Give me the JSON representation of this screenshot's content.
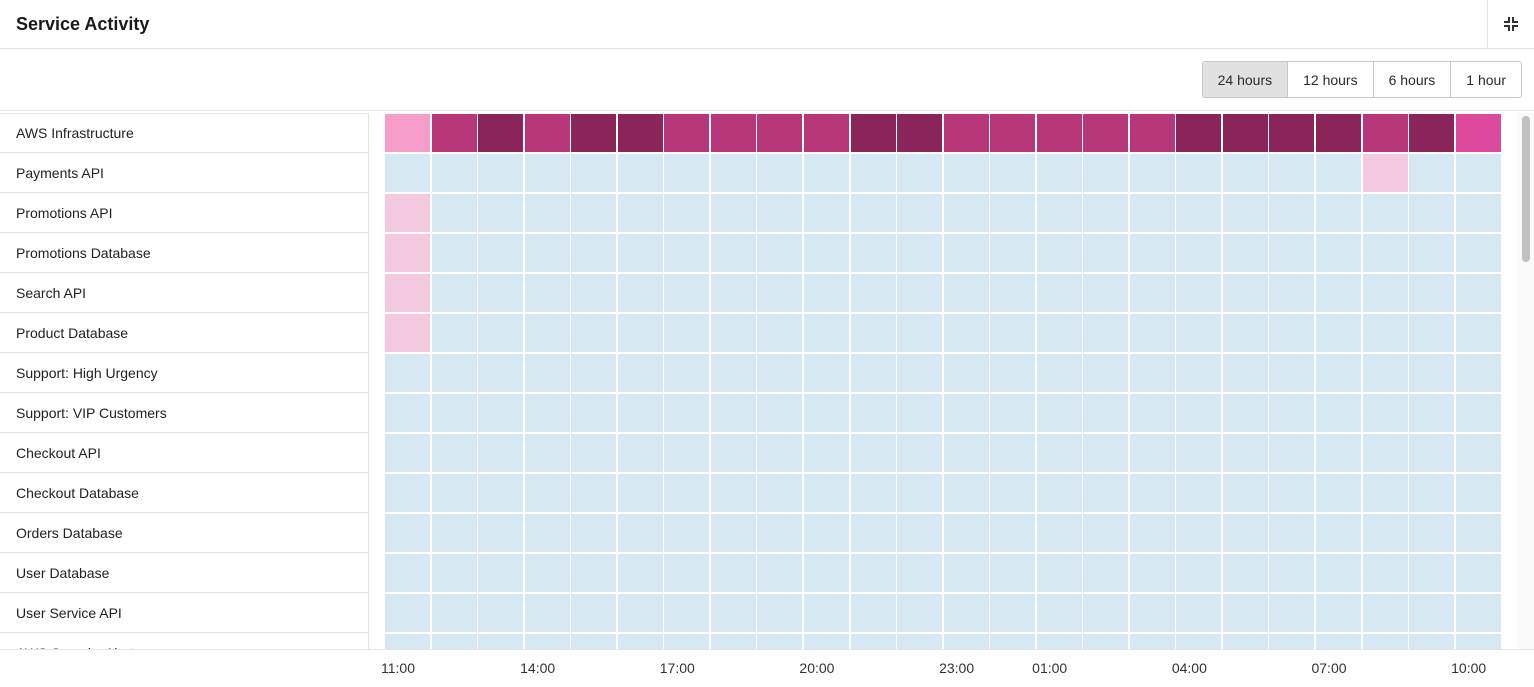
{
  "header": {
    "title": "Service Activity",
    "collapse_icon": "collapse-icon"
  },
  "time_range": {
    "options": [
      "24 hours",
      "12 hours",
      "6 hours",
      "1 hour"
    ],
    "selected": "24 hours"
  },
  "colors": {
    "none": "#d6e8f2",
    "low": "#f2c9df",
    "light": "#f79dc9",
    "medium": "#b8377a",
    "high": "#8a2459",
    "bright": "#de4a9b"
  },
  "services": [
    {
      "name": "AWS Infrastructure",
      "cells": [
        "light",
        "medium",
        "high",
        "medium",
        "high",
        "high",
        "medium",
        "medium",
        "medium",
        "medium",
        "high",
        "high",
        "medium",
        "medium",
        "medium",
        "medium",
        "medium",
        "high",
        "high",
        "high",
        "high",
        "medium",
        "high",
        "bright"
      ]
    },
    {
      "name": "Payments API",
      "cells": [
        "none",
        "none",
        "none",
        "none",
        "none",
        "none",
        "none",
        "none",
        "none",
        "none",
        "none",
        "none",
        "none",
        "none",
        "none",
        "none",
        "none",
        "none",
        "none",
        "none",
        "none",
        "low",
        "none",
        "none"
      ]
    },
    {
      "name": "Promotions API",
      "cells": [
        "low",
        "none",
        "none",
        "none",
        "none",
        "none",
        "none",
        "none",
        "none",
        "none",
        "none",
        "none",
        "none",
        "none",
        "none",
        "none",
        "none",
        "none",
        "none",
        "none",
        "none",
        "none",
        "none",
        "none"
      ]
    },
    {
      "name": "Promotions Database",
      "cells": [
        "low",
        "none",
        "none",
        "none",
        "none",
        "none",
        "none",
        "none",
        "none",
        "none",
        "none",
        "none",
        "none",
        "none",
        "none",
        "none",
        "none",
        "none",
        "none",
        "none",
        "none",
        "none",
        "none",
        "none"
      ]
    },
    {
      "name": "Search API",
      "cells": [
        "low",
        "none",
        "none",
        "none",
        "none",
        "none",
        "none",
        "none",
        "none",
        "none",
        "none",
        "none",
        "none",
        "none",
        "none",
        "none",
        "none",
        "none",
        "none",
        "none",
        "none",
        "none",
        "none",
        "none"
      ]
    },
    {
      "name": "Product Database",
      "cells": [
        "low",
        "none",
        "none",
        "none",
        "none",
        "none",
        "none",
        "none",
        "none",
        "none",
        "none",
        "none",
        "none",
        "none",
        "none",
        "none",
        "none",
        "none",
        "none",
        "none",
        "none",
        "none",
        "none",
        "none"
      ]
    },
    {
      "name": "Support: High Urgency",
      "cells": [
        "none",
        "none",
        "none",
        "none",
        "none",
        "none",
        "none",
        "none",
        "none",
        "none",
        "none",
        "none",
        "none",
        "none",
        "none",
        "none",
        "none",
        "none",
        "none",
        "none",
        "none",
        "none",
        "none",
        "none"
      ]
    },
    {
      "name": "Support: VIP Customers",
      "cells": [
        "none",
        "none",
        "none",
        "none",
        "none",
        "none",
        "none",
        "none",
        "none",
        "none",
        "none",
        "none",
        "none",
        "none",
        "none",
        "none",
        "none",
        "none",
        "none",
        "none",
        "none",
        "none",
        "none",
        "none"
      ]
    },
    {
      "name": "Checkout API",
      "cells": [
        "none",
        "none",
        "none",
        "none",
        "none",
        "none",
        "none",
        "none",
        "none",
        "none",
        "none",
        "none",
        "none",
        "none",
        "none",
        "none",
        "none",
        "none",
        "none",
        "none",
        "none",
        "none",
        "none",
        "none"
      ]
    },
    {
      "name": "Checkout Database",
      "cells": [
        "none",
        "none",
        "none",
        "none",
        "none",
        "none",
        "none",
        "none",
        "none",
        "none",
        "none",
        "none",
        "none",
        "none",
        "none",
        "none",
        "none",
        "none",
        "none",
        "none",
        "none",
        "none",
        "none",
        "none"
      ]
    },
    {
      "name": "Orders Database",
      "cells": [
        "none",
        "none",
        "none",
        "none",
        "none",
        "none",
        "none",
        "none",
        "none",
        "none",
        "none",
        "none",
        "none",
        "none",
        "none",
        "none",
        "none",
        "none",
        "none",
        "none",
        "none",
        "none",
        "none",
        "none"
      ]
    },
    {
      "name": "User Database",
      "cells": [
        "none",
        "none",
        "none",
        "none",
        "none",
        "none",
        "none",
        "none",
        "none",
        "none",
        "none",
        "none",
        "none",
        "none",
        "none",
        "none",
        "none",
        "none",
        "none",
        "none",
        "none",
        "none",
        "none",
        "none"
      ]
    },
    {
      "name": "User Service API",
      "cells": [
        "none",
        "none",
        "none",
        "none",
        "none",
        "none",
        "none",
        "none",
        "none",
        "none",
        "none",
        "none",
        "none",
        "none",
        "none",
        "none",
        "none",
        "none",
        "none",
        "none",
        "none",
        "none",
        "none",
        "none"
      ]
    },
    {
      "name": "AWS Security Alerts",
      "cells": [
        "none",
        "none",
        "none",
        "none",
        "none",
        "none",
        "none",
        "none",
        "none",
        "none",
        "none",
        "none",
        "none",
        "none",
        "none",
        "none",
        "none",
        "none",
        "none",
        "none",
        "none",
        "none",
        "none",
        "none"
      ]
    }
  ],
  "time_axis": [
    {
      "label": "11:00",
      "col": 0
    },
    {
      "label": "14:00",
      "col": 3
    },
    {
      "label": "17:00",
      "col": 6
    },
    {
      "label": "20:00",
      "col": 9
    },
    {
      "label": "23:00",
      "col": 12
    },
    {
      "label": "01:00",
      "col": 14
    },
    {
      "label": "04:00",
      "col": 17
    },
    {
      "label": "07:00",
      "col": 20
    },
    {
      "label": "10:00",
      "col": 23
    }
  ]
}
